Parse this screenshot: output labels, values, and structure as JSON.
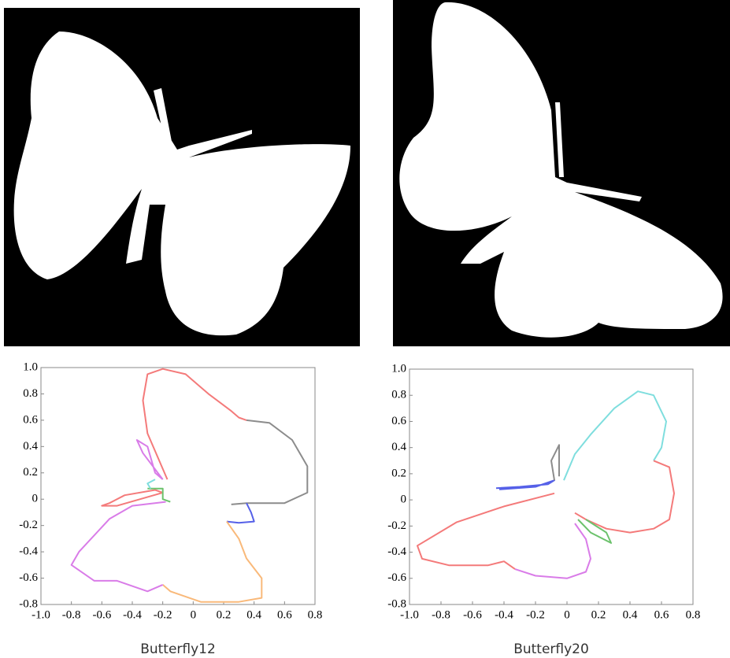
{
  "chart_data": [
    {
      "type": "line",
      "title": "Butterfly12",
      "xlim": [
        -1,
        0.8
      ],
      "ylim": [
        -0.8,
        1
      ],
      "xticks": [
        {
          "value": -1,
          "label": "-1.0"
        },
        -0.8,
        -0.6,
        -0.4,
        -0.2,
        0,
        0.2,
        0.4,
        0.6,
        0.8
      ],
      "yticks": [
        -0.8,
        -0.6,
        -0.4,
        -0.2,
        0,
        0.2,
        0.4,
        0.6,
        0.8,
        {
          "value": 1,
          "label": "1.0"
        }
      ],
      "series": [
        {
          "color": "#f47a7a",
          "x": [
            -0.17,
            -0.3,
            -0.33,
            -0.3,
            -0.2,
            -0.05,
            0.1,
            0.25,
            0.3,
            0.35
          ],
          "y": [
            0.15,
            0.5,
            0.75,
            0.95,
            0.99,
            0.95,
            0.8,
            0.67,
            0.62,
            0.6
          ]
        },
        {
          "color": "#f47a7a",
          "x": [
            -0.2,
            -0.25,
            -0.45,
            -0.55,
            -0.6,
            -0.5,
            -0.2
          ],
          "y": [
            0.05,
            0.07,
            0.03,
            -0.03,
            -0.05,
            -0.05,
            0.05
          ]
        },
        {
          "color": "#8c8c8c",
          "x": [
            0.35,
            0.5,
            0.65,
            0.75,
            0.75,
            0.6,
            0.35,
            0.25
          ],
          "y": [
            0.6,
            0.58,
            0.45,
            0.25,
            0.05,
            -0.03,
            -0.03,
            -0.04
          ]
        },
        {
          "color": "#5560e8",
          "x": [
            0.35,
            0.38,
            0.4,
            0.3,
            0.22
          ],
          "y": [
            -0.03,
            -0.1,
            -0.17,
            -0.18,
            -0.17
          ]
        },
        {
          "color": "#f9b97a",
          "x": [
            0.22,
            0.3,
            0.35,
            0.45,
            0.45,
            0.3,
            0.05,
            -0.15,
            -0.2
          ],
          "y": [
            -0.17,
            -0.3,
            -0.45,
            -0.6,
            -0.75,
            -0.78,
            -0.78,
            -0.7,
            -0.65
          ]
        },
        {
          "color": "#d97ce8",
          "x": [
            -0.2,
            -0.3,
            -0.5,
            -0.65,
            -0.8,
            -0.75,
            -0.55,
            -0.4,
            -0.18
          ],
          "y": [
            -0.65,
            -0.7,
            -0.62,
            -0.62,
            -0.5,
            -0.4,
            -0.15,
            -0.05,
            -0.02
          ]
        },
        {
          "color": "#d97ce8",
          "x": [
            -0.2,
            -0.33,
            -0.37,
            -0.3,
            -0.25,
            -0.2
          ],
          "y": [
            0.15,
            0.35,
            0.45,
            0.4,
            0.2,
            0.15
          ]
        },
        {
          "color": "#6cc26c",
          "x": [
            -0.3,
            -0.2,
            -0.2,
            -0.15
          ],
          "y": [
            0.08,
            0.08,
            0,
            -0.02
          ]
        },
        {
          "color": "#7fdede",
          "x": [
            -0.25,
            -0.3,
            -0.28
          ],
          "y": [
            0.15,
            0.12,
            0.08
          ]
        }
      ]
    },
    {
      "type": "line",
      "title": "Butterfly20",
      "xlim": [
        -1,
        0.8
      ],
      "ylim": [
        -0.8,
        1
      ],
      "xticks": [
        {
          "value": -1,
          "label": "-1.0"
        },
        -0.8,
        -0.6,
        -0.4,
        -0.2,
        0,
        0.2,
        0.4,
        0.6,
        0.8
      ],
      "yticks": [
        -0.8,
        -0.6,
        -0.4,
        -0.2,
        0,
        0.2,
        0.4,
        0.6,
        0.8,
        {
          "value": 1,
          "label": "1.0"
        }
      ],
      "series": [
        {
          "color": "#7fdede",
          "x": [
            -0.02,
            0.05,
            0.15,
            0.3,
            0.45,
            0.55,
            0.63,
            0.6,
            0.55
          ],
          "y": [
            0.15,
            0.35,
            0.5,
            0.7,
            0.83,
            0.8,
            0.6,
            0.4,
            0.3
          ]
        },
        {
          "color": "#f47a7a",
          "x": [
            0.55,
            0.65,
            0.68,
            0.65,
            0.55,
            0.4,
            0.25,
            0.12,
            0.05
          ],
          "y": [
            0.3,
            0.25,
            0.05,
            -0.15,
            -0.22,
            -0.25,
            -0.22,
            -0.15,
            -0.1
          ]
        },
        {
          "color": "#f47a7a",
          "x": [
            -0.08,
            -0.4,
            -0.7,
            -0.95,
            -0.92,
            -0.75,
            -0.5,
            -0.4,
            -0.33
          ],
          "y": [
            0.05,
            -0.05,
            -0.17,
            -0.35,
            -0.45,
            -0.5,
            -0.5,
            -0.47,
            -0.53
          ]
        },
        {
          "color": "#d97ce8",
          "x": [
            -0.33,
            -0.2,
            0,
            0.12,
            0.15,
            0.12,
            0.05
          ],
          "y": [
            -0.53,
            -0.58,
            -0.6,
            -0.55,
            -0.45,
            -0.3,
            -0.18
          ]
        },
        {
          "color": "#6cc26c",
          "x": [
            0.07,
            0.15,
            0.28,
            0.25,
            0.12
          ],
          "y": [
            -0.15,
            -0.25,
            -0.33,
            -0.25,
            -0.15
          ]
        },
        {
          "color": "#5560e8",
          "x": [
            -0.45,
            -0.3,
            -0.12,
            -0.08,
            -0.2,
            -0.43
          ],
          "y": [
            0.09,
            0.1,
            0.12,
            0.15,
            0.1,
            0.08
          ]
        },
        {
          "color": "#8c8c8c",
          "x": [
            -0.08,
            -0.1,
            -0.05,
            -0.05,
            -0.05
          ],
          "y": [
            0.15,
            0.3,
            0.42,
            0.3,
            0.18
          ]
        }
      ]
    }
  ]
}
